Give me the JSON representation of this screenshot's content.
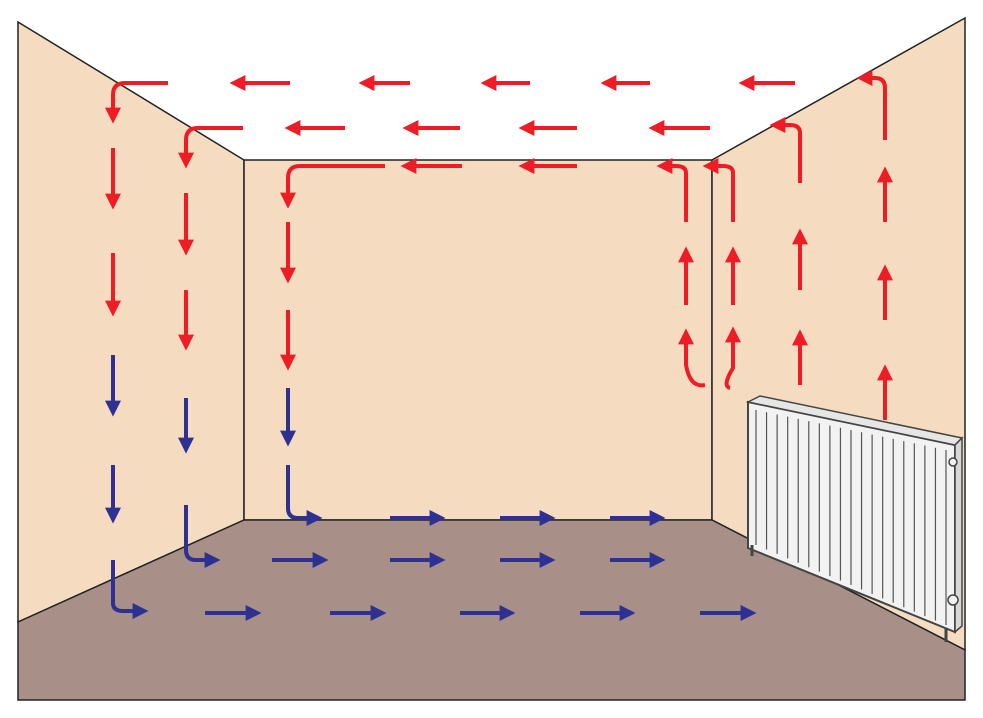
{
  "diagram": {
    "subject": "convection-current-room",
    "colors": {
      "warm_air": "#ee1c25",
      "cool_air": "#2e3192",
      "wall": "#f5dcc0",
      "floor": "#a89088",
      "ceiling": "#ffffff",
      "outline": "#222222",
      "radiator": "#f2f2f2"
    },
    "flows": {
      "warm_air_count": 40,
      "cool_air_count": 24
    },
    "icons": {
      "radiator": "radiator-icon",
      "warm_arrow": "red-arrow-icon",
      "cool_arrow": "blue-arrow-icon"
    }
  }
}
